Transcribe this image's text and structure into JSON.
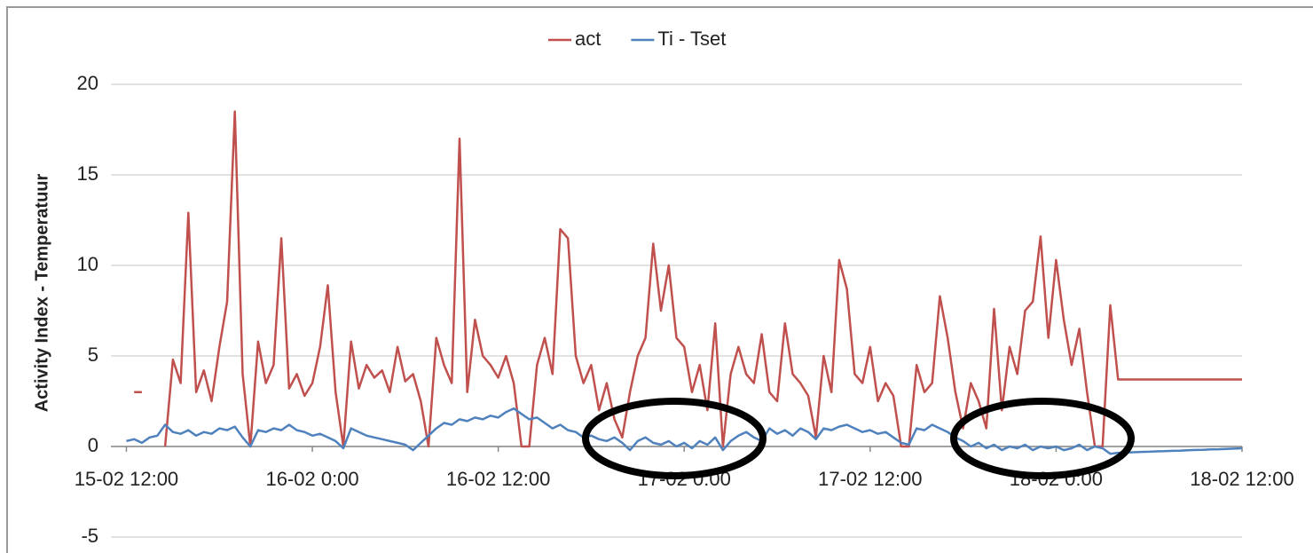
{
  "chart_data": {
    "type": "line",
    "ylabel": "Activity Index - Temperatuur",
    "legend": "top",
    "grid": true,
    "xlim": [
      "15-02 11:00",
      "18-02 12:00"
    ],
    "xticks": [
      "15-02 12:00",
      "16-02 0:00",
      "16-02 12:00",
      "17-02 0:00",
      "17-02 12:00",
      "18-02 0:00",
      "18-02 12:00"
    ],
    "ylim": [
      -5,
      20
    ],
    "yticks": [
      -5,
      0,
      5,
      10,
      15,
      20
    ],
    "x": [
      "15-02 12:00",
      "15-02 12:30",
      "15-02 13:00",
      "15-02 13:30",
      "15-02 14:00",
      "15-02 14:30",
      "15-02 15:00",
      "15-02 15:30",
      "15-02 16:00",
      "15-02 16:30",
      "15-02 17:00",
      "15-02 17:30",
      "15-02 18:00",
      "15-02 18:30",
      "15-02 19:00",
      "15-02 19:30",
      "15-02 20:00",
      "15-02 20:30",
      "15-02 21:00",
      "15-02 21:30",
      "15-02 22:00",
      "15-02 22:30",
      "15-02 23:00",
      "15-02 23:30",
      "16-02 0:00",
      "16-02 0:30",
      "16-02 1:00",
      "16-02 1:30",
      "16-02 2:00",
      "16-02 2:30",
      "16-02 3:00",
      "16-02 3:30",
      "16-02 4:00",
      "16-02 4:30",
      "16-02 5:00",
      "16-02 5:30",
      "16-02 6:00",
      "16-02 6:30",
      "16-02 7:00",
      "16-02 7:30",
      "16-02 8:00",
      "16-02 8:30",
      "16-02 9:00",
      "16-02 9:30",
      "16-02 10:00",
      "16-02 10:30",
      "16-02 11:00",
      "16-02 11:30",
      "16-02 12:00",
      "16-02 12:30",
      "16-02 13:00",
      "16-02 13:30",
      "16-02 14:00",
      "16-02 14:30",
      "16-02 15:00",
      "16-02 15:30",
      "16-02 16:00",
      "16-02 16:30",
      "16-02 17:00",
      "16-02 17:30",
      "16-02 18:00",
      "16-02 18:30",
      "16-02 19:00",
      "16-02 19:30",
      "16-02 20:00",
      "16-02 20:30",
      "16-02 21:00",
      "16-02 21:30",
      "16-02 22:00",
      "16-02 22:30",
      "16-02 23:00",
      "16-02 23:30",
      "17-02 0:00",
      "17-02 0:30",
      "17-02 1:00",
      "17-02 1:30",
      "17-02 2:00",
      "17-02 2:30",
      "17-02 3:00",
      "17-02 3:30",
      "17-02 4:00",
      "17-02 4:30",
      "17-02 5:00",
      "17-02 5:30",
      "17-02 6:00",
      "17-02 6:30",
      "17-02 7:00",
      "17-02 7:30",
      "17-02 8:00",
      "17-02 8:30",
      "17-02 9:00",
      "17-02 9:30",
      "17-02 10:00",
      "17-02 10:30",
      "17-02 11:00",
      "17-02 11:30",
      "17-02 12:00",
      "17-02 12:30",
      "17-02 13:00",
      "17-02 13:30",
      "17-02 14:00",
      "17-02 14:30",
      "17-02 15:00",
      "17-02 15:30",
      "17-02 16:00",
      "17-02 16:30",
      "17-02 17:00",
      "17-02 17:30",
      "17-02 18:00",
      "17-02 18:30",
      "17-02 19:00",
      "17-02 19:30",
      "17-02 20:00",
      "17-02 20:30",
      "17-02 21:00",
      "17-02 21:30",
      "17-02 22:00",
      "17-02 22:30",
      "17-02 23:00",
      "17-02 23:30",
      "18-02 0:00",
      "18-02 0:30",
      "18-02 1:00",
      "18-02 1:30",
      "18-02 2:00",
      "18-02 2:30",
      "18-02 3:00",
      "18-02 3:30",
      "18-02 4:00",
      "18-02 4:30",
      "18-02 5:00",
      "18-02 5:30",
      "18-02 6:00",
      "18-02 6:30",
      "18-02 7:00",
      "18-02 7:30",
      "18-02 8:00",
      "18-02 8:30",
      "18-02 9:00",
      "18-02 9:30",
      "18-02 10:00",
      "18-02 10:30",
      "18-02 11:00",
      "18-02 11:30",
      "18-02 12:00"
    ],
    "series": [
      {
        "name": "act",
        "color": "#c0504d",
        "values": [
          null,
          3,
          3,
          null,
          null,
          0,
          4.8,
          3.5,
          12.9,
          3,
          4.2,
          2.5,
          5.5,
          8,
          18.5,
          4,
          0,
          5.8,
          3.5,
          4.5,
          11.5,
          3.2,
          4,
          2.8,
          3.5,
          5.5,
          8.9,
          3,
          0,
          5.8,
          3.2,
          4.5,
          3.8,
          4.2,
          3,
          5.5,
          3.6,
          4,
          2.5,
          0,
          6,
          4.5,
          3.5,
          17,
          3,
          7,
          5,
          4.5,
          3.8,
          5,
          3.5,
          0,
          0,
          4.5,
          6,
          4,
          12,
          11.5,
          5,
          3.5,
          4.5,
          2,
          3.5,
          1.5,
          0.5,
          3,
          5,
          6,
          11.2,
          7.5,
          10,
          6,
          5.5,
          3,
          4.5,
          2,
          6.8,
          0,
          4,
          5.5,
          4,
          3.5,
          6.2,
          3,
          2.5,
          6.8,
          4,
          3.5,
          2.8,
          0.5,
          5,
          3,
          10.3,
          8.7,
          4,
          3.5,
          5.5,
          2.5,
          3.5,
          2.8,
          0,
          0,
          4.5,
          3,
          3.5,
          8.3,
          6,
          3,
          1,
          3.5,
          2.5,
          1,
          7.6,
          2,
          5.5,
          4,
          7.5,
          8,
          11.6,
          6,
          10.3,
          7,
          4.5,
          6.5,
          3,
          0,
          0,
          7.8,
          3.7,
          3.7,
          3.7,
          3.7,
          3.7,
          3.7,
          3.7,
          3.7,
          3.7,
          3.7,
          3.7,
          3.7,
          3.7,
          3.7,
          3.7,
          3.7,
          3.7
        ]
      },
      {
        "name": "Ti - Tset",
        "color": "#4f81bd",
        "values": [
          0.3,
          0.4,
          0.2,
          0.5,
          0.6,
          1.2,
          0.8,
          0.7,
          0.9,
          0.6,
          0.8,
          0.7,
          1.0,
          0.9,
          1.1,
          0.5,
          0.0,
          0.9,
          0.8,
          1.0,
          0.9,
          1.2,
          0.9,
          0.8,
          0.6,
          0.7,
          0.5,
          0.3,
          -0.1,
          1.0,
          0.8,
          0.6,
          0.5,
          0.4,
          0.3,
          0.2,
          0.1,
          -0.2,
          0.2,
          0.6,
          1.0,
          1.3,
          1.2,
          1.5,
          1.4,
          1.6,
          1.5,
          1.7,
          1.6,
          1.9,
          2.1,
          1.8,
          1.5,
          1.6,
          1.3,
          1.0,
          1.2,
          0.9,
          0.8,
          0.5,
          0.6,
          0.4,
          0.3,
          0.5,
          0.2,
          -0.2,
          0.3,
          0.5,
          0.2,
          0.1,
          0.3,
          0.0,
          0.2,
          -0.1,
          0.3,
          0.1,
          0.5,
          -0.2,
          0.3,
          0.6,
          0.8,
          0.5,
          0.3,
          1.0,
          0.7,
          0.9,
          0.6,
          1.0,
          0.8,
          0.4,
          1.0,
          0.9,
          1.1,
          1.2,
          1.0,
          0.8,
          0.9,
          0.7,
          0.8,
          0.5,
          0.2,
          0.1,
          1.0,
          0.9,
          1.2,
          1.0,
          0.8,
          0.5,
          0.3,
          0.0,
          0.2,
          -0.1,
          0.1,
          -0.2,
          0.0,
          -0.1,
          0.1,
          -0.2,
          0.0,
          -0.1,
          0.0,
          -0.2,
          -0.1,
          0.1,
          -0.2,
          0.0,
          -0.1,
          -0.4,
          -0.35,
          -0.33,
          -0.32,
          -0.3,
          -0.29,
          -0.27,
          -0.26,
          -0.24,
          -0.23,
          -0.21,
          -0.19,
          -0.18,
          -0.16,
          -0.15,
          -0.13,
          -0.12,
          -0.1
        ]
      }
    ]
  }
}
